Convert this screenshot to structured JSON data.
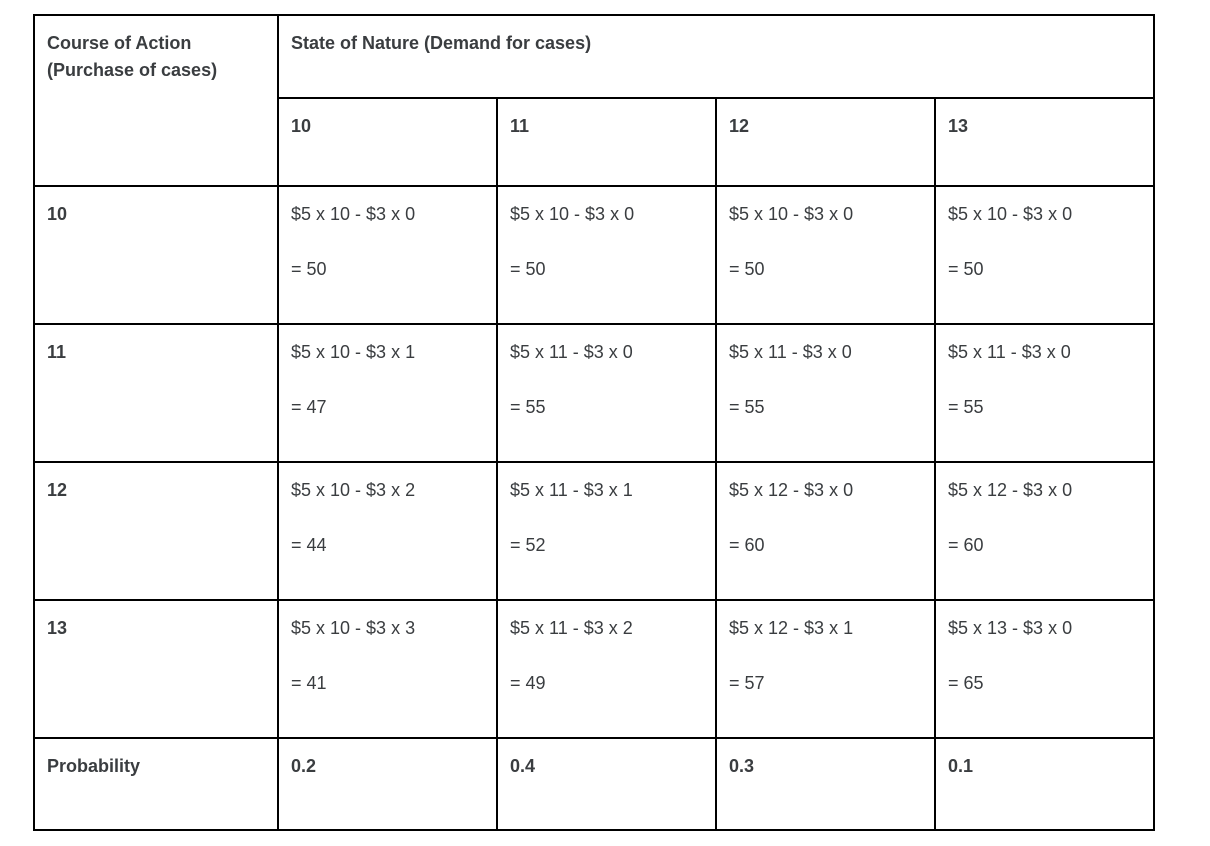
{
  "colors": {
    "background": "#ffffff",
    "border": "#000000",
    "text": "#3a3d40"
  },
  "table": {
    "corner_header": "Course of Action (Purchase of cases)",
    "group_header": "State of Nature (Demand for cases)",
    "demand_headers": [
      "10",
      "11",
      "12",
      "13"
    ],
    "rows": [
      {
        "action": "10",
        "cells": [
          {
            "formula": "$5 x 10 - $3 x 0",
            "result": "= 50"
          },
          {
            "formula": "$5 x 10 - $3 x 0",
            "result": "= 50"
          },
          {
            "formula": "$5 x 10 - $3 x 0",
            "result": "= 50"
          },
          {
            "formula": "$5 x 10 - $3 x 0",
            "result": "= 50"
          }
        ]
      },
      {
        "action": "11",
        "cells": [
          {
            "formula": "$5 x 10 - $3 x 1",
            "result": "= 47"
          },
          {
            "formula": "$5 x 11 - $3 x 0",
            "result": "= 55"
          },
          {
            "formula": "$5 x 11 - $3 x 0",
            "result": "= 55"
          },
          {
            "formula": "$5 x 11 - $3 x 0",
            "result": "= 55"
          }
        ]
      },
      {
        "action": "12",
        "cells": [
          {
            "formula": "$5 x 10 - $3 x 2",
            "result": "= 44"
          },
          {
            "formula": "$5 x 11 - $3 x 1",
            "result": "= 52"
          },
          {
            "formula": "$5 x 12 - $3 x 0",
            "result": "= 60"
          },
          {
            "formula": "$5 x 12 - $3 x 0",
            "result": "= 60"
          }
        ]
      },
      {
        "action": "13",
        "cells": [
          {
            "formula": "$5 x 10 - $3 x 3",
            "result": "= 41"
          },
          {
            "formula": "$5 x 11 - $3 x 2",
            "result": "= 49"
          },
          {
            "formula": "$5 x 12 - $3 x 1",
            "result": "= 57"
          },
          {
            "formula": "$5 x 13 - $3 x 0",
            "result": "= 65"
          }
        ]
      }
    ],
    "probability_label": "Probability",
    "probabilities": [
      "0.2",
      "0.4",
      "0.3",
      "0.1"
    ]
  }
}
